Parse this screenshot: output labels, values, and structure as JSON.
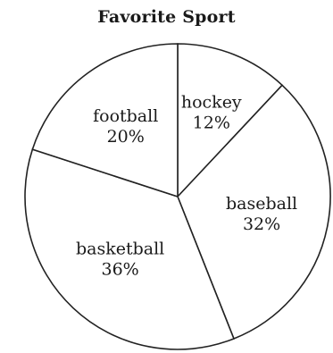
{
  "chart_data": {
    "type": "pie",
    "title": "Favorite Sport",
    "slices": [
      {
        "label": "hockey",
        "value": 12,
        "value_text": "12%"
      },
      {
        "label": "baseball",
        "value": 32,
        "value_text": "32%"
      },
      {
        "label": "basketball",
        "value": 36,
        "value_text": "36%"
      },
      {
        "label": "football",
        "value": 20,
        "value_text": "20%"
      }
    ],
    "start_direction": "top",
    "direction": "clockwise",
    "colors": {
      "fill": "#ffffff",
      "stroke": "#222222"
    }
  }
}
